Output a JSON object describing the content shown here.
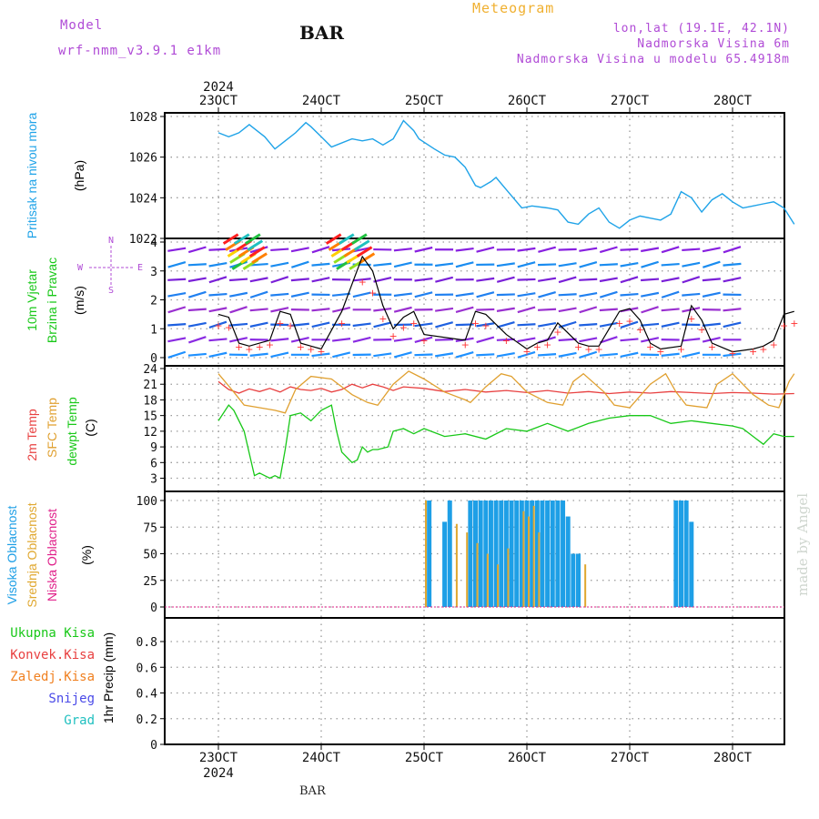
{
  "header": {
    "model_label": "Model",
    "model_name": "wrf-nmm_v3.9.1 e1km",
    "station": "BAR",
    "product": "Meteogram",
    "coords": "lon,lat (19.1E, 42.1N)",
    "elevation": "Nadmorska Visina 6m",
    "model_elevation": "Nadmorska Visina u modelu 65.4918m",
    "footer_station": "BAR",
    "credit": "made by Angel"
  },
  "colors": {
    "pressure": "#1fa3e8",
    "temp2m": "#e84040",
    "sfc_temp": "#e0a030",
    "dewpoint": "#18c818",
    "high_cloud": "#1e9fe6",
    "mid_cloud": "#e0a830",
    "low_cloud": "#e0208a",
    "wind_dots": "#ff3030",
    "wind_line": "#000000",
    "label_purple": "#b04bd6"
  },
  "chart_data": [
    {
      "id": "pressure",
      "type": "line",
      "ylabel": [
        "Pritisak na nivou mora"
      ],
      "unit": "(hPa)",
      "ylim": [
        1022,
        1028.2
      ],
      "yticks": [
        1022,
        1024,
        1026,
        1028
      ],
      "x_dates_top": [
        "23OCT",
        "24OCT",
        "25OCT",
        "26OCT",
        "27OCT",
        "28OCT"
      ],
      "x_year_top": "2024",
      "grid": true,
      "series": [
        {
          "x": [
            0,
            0.1,
            0.2,
            0.3,
            0.35,
            0.45,
            0.55,
            0.65,
            0.75,
            0.85,
            0.9,
            1.0,
            1.1,
            1.15,
            1.3,
            1.4,
            1.5,
            1.6,
            1.7,
            1.8,
            1.9,
            1.95,
            2.1,
            2.2,
            2.3,
            2.4,
            2.5,
            2.55,
            2.65,
            2.7,
            2.8,
            2.95,
            3.05,
            3.2,
            3.3,
            3.4,
            3.5,
            3.6,
            3.7,
            3.8,
            3.9,
            4.0,
            4.1,
            4.2,
            4.3,
            4.4,
            4.5,
            4.6,
            4.7,
            4.8,
            4.9,
            5.0,
            5.1,
            5.2,
            5.3,
            5.4,
            5.5,
            5.55,
            5.6
          ],
          "y": [
            1027.2,
            1027.0,
            1027.2,
            1027.6,
            1027.4,
            1027.0,
            1026.4,
            1026.8,
            1027.2,
            1027.7,
            1027.5,
            1027.0,
            1026.5,
            1026.6,
            1026.9,
            1026.8,
            1026.9,
            1026.6,
            1026.9,
            1027.8,
            1027.3,
            1026.9,
            1026.4,
            1026.1,
            1026.0,
            1025.5,
            1024.6,
            1024.5,
            1024.8,
            1025.0,
            1024.4,
            1023.5,
            1023.6,
            1023.5,
            1023.4,
            1022.8,
            1022.7,
            1023.2,
            1023.5,
            1022.8,
            1022.5,
            1022.9,
            1023.1,
            1023.0,
            1022.9,
            1023.2,
            1024.3,
            1024.0,
            1023.3,
            1023.9,
            1024.2,
            1023.8,
            1023.5,
            1023.6,
            1023.7,
            1023.8,
            1023.5,
            1023.1,
            1022.7
          ]
        }
      ]
    },
    {
      "id": "wind",
      "type": "line",
      "ylabel": [
        "10m Vjetar",
        "Brzina i Pravac"
      ],
      "unit": "(m/s)",
      "ylim": [
        0,
        4.1
      ],
      "yticks": [
        0,
        1,
        2,
        3,
        4
      ],
      "compass": {
        "n": "N",
        "s": "S",
        "e": "E",
        "w": "W"
      },
      "grid": true,
      "series": [
        {
          "name": "",
          "x": [
            0,
            0.1,
            0.2,
            0.3,
            0.4,
            0.5,
            0.6,
            0.7,
            0.8,
            0.9,
            1.0,
            1.2,
            1.4,
            1.5,
            1.6,
            1.7,
            1.8,
            1.9,
            2.0,
            2.4,
            2.5,
            2.6,
            2.8,
            3.0,
            3.1,
            3.2,
            3.3,
            3.5,
            3.6,
            3.7,
            3.9,
            4.0,
            4.1,
            4.2,
            4.3,
            4.5,
            4.6,
            4.7,
            4.8,
            5.0,
            5.2,
            5.3,
            5.4,
            5.5,
            5.6
          ],
          "y": [
            1.5,
            1.4,
            0.5,
            0.4,
            0.5,
            0.6,
            1.6,
            1.5,
            0.5,
            0.4,
            0.3,
            1.6,
            3.5,
            3.0,
            1.8,
            1.0,
            1.4,
            1.6,
            0.8,
            0.6,
            1.6,
            1.5,
            0.8,
            0.3,
            0.5,
            0.6,
            1.2,
            0.5,
            0.4,
            0.4,
            1.6,
            1.7,
            1.3,
            0.5,
            0.3,
            0.4,
            1.8,
            1.3,
            0.5,
            0.2,
            0.3,
            0.4,
            0.6,
            1.5,
            1.6
          ]
        }
      ]
    },
    {
      "id": "temperature",
      "type": "line",
      "ylabel": [
        "2m Temp",
        "SFC Temp",
        "dewpt Temp"
      ],
      "unit": "(C)",
      "ylim": [
        1,
        24
      ],
      "yticks": [
        3,
        6,
        9,
        12,
        15,
        18,
        21,
        24
      ],
      "grid": true,
      "series": [
        {
          "name": "2m Temp",
          "x": [
            0,
            0.1,
            0.2,
            0.3,
            0.4,
            0.5,
            0.6,
            0.7,
            0.8,
            0.9,
            1.0,
            1.1,
            1.2,
            1.3,
            1.4,
            1.5,
            1.6,
            1.7,
            1.8,
            2.0,
            2.2,
            2.4,
            2.6,
            2.8,
            3.0,
            3.2,
            3.4,
            3.6,
            3.8,
            4.0,
            4.2,
            4.4,
            4.6,
            4.8,
            5.0,
            5.2,
            5.4,
            5.6
          ],
          "y": [
            21.5,
            20.0,
            19.3,
            20.1,
            19.6,
            20.2,
            19.5,
            20.5,
            20.0,
            19.8,
            20.2,
            19.5,
            20.0,
            21.0,
            20.3,
            21.0,
            20.5,
            19.8,
            20.5,
            20.2,
            19.6,
            20.0,
            19.5,
            19.8,
            19.4,
            19.8,
            19.3,
            19.6,
            19.2,
            19.5,
            19.3,
            19.6,
            19.4,
            19.2,
            19.4,
            19.3,
            19.1,
            19.2
          ]
        },
        {
          "name": "SFC Temp",
          "x": [
            0,
            0.15,
            0.25,
            0.4,
            0.55,
            0.65,
            0.75,
            0.9,
            1.1,
            1.3,
            1.45,
            1.55,
            1.7,
            1.85,
            2.0,
            2.2,
            2.4,
            2.45,
            2.6,
            2.75,
            2.85,
            3.0,
            3.2,
            3.35,
            3.45,
            3.55,
            3.75,
            3.85,
            4.0,
            4.2,
            4.35,
            4.45,
            4.55,
            4.75,
            4.85,
            5.0,
            5.2,
            5.35,
            5.45,
            5.55,
            5.6
          ],
          "y": [
            23.0,
            19.5,
            17.0,
            16.5,
            16.0,
            15.5,
            20.0,
            22.5,
            22.0,
            19.0,
            17.5,
            17.0,
            21.0,
            23.5,
            22.0,
            19.5,
            18.0,
            17.5,
            20.5,
            23.0,
            22.5,
            19.5,
            17.5,
            17.0,
            21.5,
            23.0,
            19.5,
            17.0,
            16.5,
            21.0,
            23.0,
            19.5,
            17.0,
            16.5,
            21.0,
            23.0,
            19.0,
            17.0,
            16.5,
            21.5,
            23.0
          ]
        },
        {
          "name": "dewpt Temp",
          "x": [
            0,
            0.1,
            0.15,
            0.25,
            0.35,
            0.4,
            0.45,
            0.5,
            0.55,
            0.6,
            0.65,
            0.7,
            0.8,
            0.9,
            1.0,
            1.1,
            1.15,
            1.2,
            1.3,
            1.35,
            1.4,
            1.45,
            1.5,
            1.55,
            1.65,
            1.7,
            1.8,
            1.9,
            2.0,
            2.2,
            2.4,
            2.6,
            2.8,
            3.0,
            3.2,
            3.4,
            3.6,
            3.8,
            4.0,
            4.2,
            4.4,
            4.6,
            4.8,
            5.0,
            5.1,
            5.2,
            5.3,
            5.4,
            5.5,
            5.6
          ],
          "y": [
            14.0,
            17.0,
            16.0,
            12.0,
            3.5,
            4.0,
            3.5,
            3.0,
            3.5,
            3.0,
            8.5,
            15.0,
            15.5,
            14.0,
            16.0,
            17.0,
            12.0,
            8.0,
            6.0,
            6.5,
            9.0,
            8.0,
            8.5,
            8.5,
            9.0,
            12.0,
            12.5,
            11.5,
            12.5,
            11.0,
            11.5,
            10.5,
            12.5,
            12.0,
            13.5,
            12.0,
            13.5,
            14.5,
            15.0,
            15.0,
            13.5,
            14.0,
            13.5,
            13.0,
            12.5,
            11.0,
            9.5,
            11.5,
            11.0,
            11.0
          ]
        }
      ]
    },
    {
      "id": "clouds",
      "type": "bar",
      "ylabel": [
        "Visoka Oblacnost",
        "Srednja Oblacnost",
        "Niska Oblacnost"
      ],
      "unit": "(%)",
      "ylim": [
        -7,
        107
      ],
      "yticks": [
        0,
        25,
        50,
        75,
        100
      ],
      "grid": true,
      "series": [
        {
          "name": "Visoka Oblacnost",
          "x": [
            2.05,
            2.2,
            2.25,
            2.45,
            2.5,
            2.55,
            2.6,
            2.65,
            2.7,
            2.75,
            2.8,
            2.85,
            2.9,
            2.95,
            3.0,
            3.05,
            3.1,
            3.15,
            3.2,
            3.25,
            3.3,
            3.35,
            3.4,
            3.45,
            3.5,
            4.45,
            4.5,
            4.55,
            4.6
          ],
          "y": [
            100,
            80,
            100,
            100,
            100,
            100,
            100,
            100,
            100,
            100,
            100,
            100,
            100,
            100,
            100,
            100,
            100,
            100,
            100,
            100,
            100,
            100,
            85,
            50,
            50,
            100,
            100,
            100,
            80
          ]
        },
        {
          "name": "Srednja Oblacnost",
          "x": [
            2.0,
            2.3,
            2.4,
            2.5,
            2.6,
            2.7,
            2.8,
            2.95,
            3.0,
            3.05,
            3.1,
            3.55
          ],
          "y": [
            100,
            78,
            70,
            60,
            50,
            40,
            55,
            90,
            85,
            95,
            70,
            40
          ]
        }
      ]
    },
    {
      "id": "precip",
      "type": "line",
      "ylabel": [
        "1hr Precip"
      ],
      "unit": "(mm)",
      "legend": [
        "Ukupna Kisa",
        "Konvek.Kisa",
        "Zaledj.Kisa",
        "Snijeg",
        "Grad"
      ],
      "ylim": [
        0,
        1.0
      ],
      "yticks": [
        0,
        0.2,
        0.4,
        0.6,
        0.8
      ],
      "x_dates_bottom": [
        "23OCT",
        "24OCT",
        "25OCT",
        "26OCT",
        "27OCT",
        "28OCT"
      ],
      "x_year_bottom": "2024",
      "grid": true,
      "series": []
    }
  ]
}
